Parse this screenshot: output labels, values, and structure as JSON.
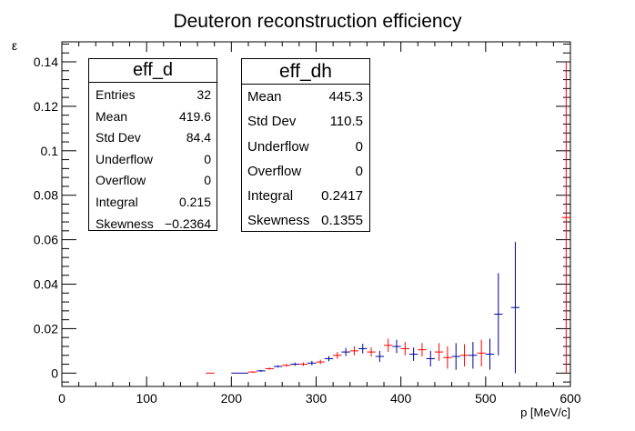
{
  "title": "Deuteron reconstruction efficiency",
  "chart_data": {
    "type": "scatter",
    "title": "Deuteron reconstruction efficiency",
    "xlabel": "p [MeV/c]",
    "ylabel": "ε",
    "xlim": [
      0,
      600
    ],
    "ylim": [
      -0.006,
      0.149
    ],
    "x_ticks": [
      0,
      100,
      200,
      300,
      400,
      500,
      600
    ],
    "x_tick_labels": [
      "0",
      "100",
      "200",
      "300",
      "400",
      "500",
      "600"
    ],
    "y_ticks": [
      0,
      0.02,
      0.04,
      0.06,
      0.08,
      0.1,
      0.12,
      0.14
    ],
    "y_tick_labels": [
      "0",
      "0.02",
      "0.04",
      "0.06",
      "0.08",
      "0.1",
      "0.12",
      "0.14"
    ],
    "grid": false,
    "series": [
      {
        "name": "eff_d",
        "color": "#ff0000",
        "points": [
          {
            "x": 175,
            "y": 0.0,
            "xerr": 5,
            "yerr": 0.0
          },
          {
            "x": 225,
            "y": 0.0005,
            "xerr": 5,
            "yerr": 0.0003
          },
          {
            "x": 245,
            "y": 0.002,
            "xerr": 5,
            "yerr": 0.0005
          },
          {
            "x": 265,
            "y": 0.0035,
            "xerr": 5,
            "yerr": 0.0006
          },
          {
            "x": 285,
            "y": 0.004,
            "xerr": 5,
            "yerr": 0.0008
          },
          {
            "x": 305,
            "y": 0.005,
            "xerr": 5,
            "yerr": 0.001
          },
          {
            "x": 325,
            "y": 0.008,
            "xerr": 5,
            "yerr": 0.0015
          },
          {
            "x": 345,
            "y": 0.01,
            "xerr": 5,
            "yerr": 0.002
          },
          {
            "x": 365,
            "y": 0.0095,
            "xerr": 5,
            "yerr": 0.002
          },
          {
            "x": 385,
            "y": 0.0125,
            "xerr": 5,
            "yerr": 0.003
          },
          {
            "x": 405,
            "y": 0.011,
            "xerr": 5,
            "yerr": 0.003
          },
          {
            "x": 425,
            "y": 0.0105,
            "xerr": 5,
            "yerr": 0.003
          },
          {
            "x": 445,
            "y": 0.0095,
            "xerr": 5,
            "yerr": 0.004
          },
          {
            "x": 455,
            "y": 0.007,
            "xerr": 5,
            "yerr": 0.005
          },
          {
            "x": 475,
            "y": 0.008,
            "xerr": 5,
            "yerr": 0.005
          },
          {
            "x": 495,
            "y": 0.009,
            "xerr": 5,
            "yerr": 0.006
          },
          {
            "x": 595,
            "y": 0.07,
            "xerr": 5,
            "yerr": 0.07
          }
        ]
      },
      {
        "name": "eff_dh",
        "color": "#000099",
        "points": [
          {
            "x": 205,
            "y": 0.0,
            "xerr": 5,
            "yerr": 0.0
          },
          {
            "x": 215,
            "y": 0.0,
            "xerr": 5,
            "yerr": 0.0
          },
          {
            "x": 235,
            "y": 0.001,
            "xerr": 5,
            "yerr": 0.0004
          },
          {
            "x": 255,
            "y": 0.003,
            "xerr": 5,
            "yerr": 0.0005
          },
          {
            "x": 275,
            "y": 0.004,
            "xerr": 5,
            "yerr": 0.0007
          },
          {
            "x": 295,
            "y": 0.0045,
            "xerr": 5,
            "yerr": 0.001
          },
          {
            "x": 315,
            "y": 0.0065,
            "xerr": 5,
            "yerr": 0.0012
          },
          {
            "x": 335,
            "y": 0.0095,
            "xerr": 5,
            "yerr": 0.0018
          },
          {
            "x": 355,
            "y": 0.011,
            "xerr": 5,
            "yerr": 0.0022
          },
          {
            "x": 375,
            "y": 0.0075,
            "xerr": 5,
            "yerr": 0.0025
          },
          {
            "x": 395,
            "y": 0.012,
            "xerr": 5,
            "yerr": 0.003
          },
          {
            "x": 415,
            "y": 0.0085,
            "xerr": 5,
            "yerr": 0.003
          },
          {
            "x": 435,
            "y": 0.0065,
            "xerr": 5,
            "yerr": 0.0035
          },
          {
            "x": 465,
            "y": 0.0075,
            "xerr": 5,
            "yerr": 0.006
          },
          {
            "x": 485,
            "y": 0.008,
            "xerr": 5,
            "yerr": 0.006
          },
          {
            "x": 505,
            "y": 0.0085,
            "xerr": 5,
            "yerr": 0.007
          },
          {
            "x": 515,
            "y": 0.0265,
            "xerr": 5,
            "yerr": 0.0185
          },
          {
            "x": 535,
            "y": 0.0295,
            "xerr": 5,
            "yerr": 0.0295
          }
        ]
      }
    ],
    "stats": [
      {
        "name": "eff_d",
        "rows": [
          {
            "label": "Entries",
            "value": "32"
          },
          {
            "label": "Mean",
            "value": "419.6"
          },
          {
            "label": "Std Dev",
            "value": "84.4"
          },
          {
            "label": "Underflow",
            "value": "0"
          },
          {
            "label": "Overflow",
            "value": "0"
          },
          {
            "label": "Integral",
            "value": "0.215"
          },
          {
            "label": "Skewness",
            "value": "−0.2364"
          }
        ]
      },
      {
        "name": "eff_dh",
        "rows": [
          {
            "label": "Mean",
            "value": "445.3"
          },
          {
            "label": "Std Dev",
            "value": "110.5"
          },
          {
            "label": "Underflow",
            "value": "0"
          },
          {
            "label": "Overflow",
            "value": "0"
          },
          {
            "label": "Integral",
            "value": "0.2417"
          },
          {
            "label": "Skewness",
            "value": "0.1355"
          }
        ]
      }
    ]
  }
}
